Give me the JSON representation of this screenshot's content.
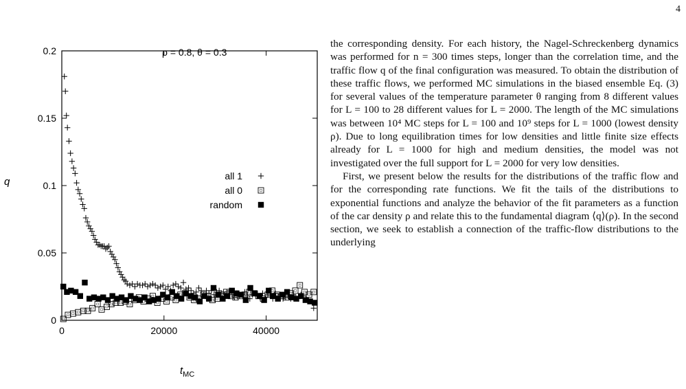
{
  "page_number": "4",
  "chart_data": {
    "type": "scatter",
    "annotation": "ρ = 0.8, θ = 0.3",
    "ylabel": "q",
    "xlabel_main": "t",
    "xlabel_sub": "MC",
    "xlim": [
      0,
      50000
    ],
    "ylim": [
      0,
      0.2
    ],
    "x_ticks": [
      0,
      20000,
      40000
    ],
    "x_tick_labels": [
      "0",
      "20000",
      "40000"
    ],
    "y_ticks": [
      0,
      0.05,
      0.1,
      0.15,
      0.2
    ],
    "y_tick_labels": [
      "0",
      "0.05",
      "0.1",
      "0.15",
      "0.2"
    ],
    "legend_position": "center-right",
    "series": [
      {
        "name": "all 1",
        "marker": "plus",
        "points": [
          [
            500,
            0.181
          ],
          [
            700,
            0.17
          ],
          [
            900,
            0.152
          ],
          [
            1100,
            0.143
          ],
          [
            1400,
            0.133
          ],
          [
            1700,
            0.124
          ],
          [
            2000,
            0.118
          ],
          [
            2300,
            0.113
          ],
          [
            2600,
            0.109
          ],
          [
            2900,
            0.102
          ],
          [
            3200,
            0.097
          ],
          [
            3500,
            0.094
          ],
          [
            3800,
            0.09
          ],
          [
            4100,
            0.086
          ],
          [
            4400,
            0.083
          ],
          [
            4700,
            0.076
          ],
          [
            5000,
            0.073
          ],
          [
            5300,
            0.07
          ],
          [
            5600,
            0.068
          ],
          [
            5900,
            0.066
          ],
          [
            6200,
            0.063
          ],
          [
            6500,
            0.06
          ],
          [
            6800,
            0.058
          ],
          [
            7100,
            0.056
          ],
          [
            7400,
            0.056
          ],
          [
            7700,
            0.055
          ],
          [
            8000,
            0.055
          ],
          [
            8300,
            0.055
          ],
          [
            8600,
            0.053
          ],
          [
            8900,
            0.054
          ],
          [
            9200,
            0.055
          ],
          [
            9500,
            0.051
          ],
          [
            9800,
            0.049
          ],
          [
            10100,
            0.047
          ],
          [
            10400,
            0.045
          ],
          [
            10700,
            0.042
          ],
          [
            11000,
            0.039
          ],
          [
            11300,
            0.036
          ],
          [
            11600,
            0.034
          ],
          [
            11900,
            0.032
          ],
          [
            12200,
            0.03
          ],
          [
            12500,
            0.029
          ],
          [
            12800,
            0.027
          ],
          [
            13300,
            0.026
          ],
          [
            13800,
            0.027
          ],
          [
            14300,
            0.025
          ],
          [
            14800,
            0.027
          ],
          [
            15300,
            0.026
          ],
          [
            15800,
            0.026
          ],
          [
            16300,
            0.027
          ],
          [
            16800,
            0.025
          ],
          [
            17300,
            0.026
          ],
          [
            17800,
            0.027
          ],
          [
            18300,
            0.026
          ],
          [
            18800,
            0.024
          ],
          [
            19300,
            0.025
          ],
          [
            19800,
            0.026
          ],
          [
            20300,
            0.023
          ],
          [
            20800,
            0.025
          ],
          [
            21300,
            0.022
          ],
          [
            21800,
            0.026
          ],
          [
            22300,
            0.027
          ],
          [
            22800,
            0.025
          ],
          [
            23300,
            0.024
          ],
          [
            23800,
            0.028
          ],
          [
            24300,
            0.023
          ],
          [
            24800,
            0.024
          ],
          [
            25300,
            0.022
          ],
          [
            25800,
            0.02
          ],
          [
            26300,
            0.021
          ],
          [
            26800,
            0.024
          ],
          [
            27300,
            0.022
          ],
          [
            27800,
            0.019
          ],
          [
            28300,
            0.022
          ],
          [
            28800,
            0.02
          ],
          [
            29300,
            0.022
          ],
          [
            29800,
            0.019
          ],
          [
            30300,
            0.021
          ],
          [
            30800,
            0.022
          ],
          [
            31300,
            0.02
          ],
          [
            31800,
            0.018
          ],
          [
            32300,
            0.021
          ],
          [
            32800,
            0.022
          ],
          [
            33300,
            0.019
          ],
          [
            33800,
            0.017
          ],
          [
            34300,
            0.02
          ],
          [
            34800,
            0.018
          ],
          [
            35300,
            0.019
          ],
          [
            35800,
            0.021
          ],
          [
            36300,
            0.018
          ],
          [
            36800,
            0.016
          ],
          [
            37300,
            0.019
          ],
          [
            37800,
            0.02
          ],
          [
            38300,
            0.018
          ],
          [
            38800,
            0.017
          ],
          [
            39300,
            0.02
          ],
          [
            39800,
            0.017
          ],
          [
            40300,
            0.019
          ],
          [
            40800,
            0.018
          ],
          [
            41300,
            0.016
          ],
          [
            41800,
            0.02
          ],
          [
            42300,
            0.018
          ],
          [
            42800,
            0.019
          ],
          [
            43300,
            0.016
          ],
          [
            43800,
            0.017
          ],
          [
            44300,
            0.018
          ],
          [
            44800,
            0.016
          ],
          [
            45300,
            0.019
          ],
          [
            45800,
            0.017
          ],
          [
            46300,
            0.016
          ],
          [
            46800,
            0.019
          ],
          [
            47300,
            0.018
          ],
          [
            47800,
            0.016
          ],
          [
            48300,
            0.015
          ],
          [
            48800,
            0.014
          ],
          [
            49300,
            0.009
          ]
        ]
      },
      {
        "name": "all 0",
        "marker": "open-square",
        "points": [
          [
            300,
            0.001
          ],
          [
            1200,
            0.004
          ],
          [
            2200,
            0.005
          ],
          [
            3200,
            0.006
          ],
          [
            4200,
            0.007
          ],
          [
            5100,
            0.007
          ],
          [
            6000,
            0.009
          ],
          [
            7000,
            0.012
          ],
          [
            7800,
            0.008
          ],
          [
            8800,
            0.01
          ],
          [
            9700,
            0.012
          ],
          [
            10600,
            0.013
          ],
          [
            11500,
            0.013
          ],
          [
            12400,
            0.014
          ],
          [
            13300,
            0.012
          ],
          [
            14200,
            0.015
          ],
          [
            15100,
            0.017
          ],
          [
            16000,
            0.014
          ],
          [
            16900,
            0.016
          ],
          [
            17800,
            0.018
          ],
          [
            18700,
            0.013
          ],
          [
            19600,
            0.016
          ],
          [
            20500,
            0.014
          ],
          [
            21400,
            0.017
          ],
          [
            22300,
            0.015
          ],
          [
            23200,
            0.019
          ],
          [
            24100,
            0.02
          ],
          [
            25000,
            0.017
          ],
          [
            25900,
            0.015
          ],
          [
            26800,
            0.016
          ],
          [
            27700,
            0.019
          ],
          [
            28600,
            0.018
          ],
          [
            29500,
            0.015
          ],
          [
            30400,
            0.016
          ],
          [
            31300,
            0.019
          ],
          [
            32200,
            0.021
          ],
          [
            33100,
            0.018
          ],
          [
            34000,
            0.017
          ],
          [
            34900,
            0.018
          ],
          [
            35800,
            0.019
          ],
          [
            36700,
            0.021
          ],
          [
            37600,
            0.02
          ],
          [
            38500,
            0.018
          ],
          [
            39400,
            0.016
          ],
          [
            40300,
            0.019
          ],
          [
            41200,
            0.022
          ],
          [
            42100,
            0.019
          ],
          [
            43000,
            0.018
          ],
          [
            43900,
            0.017
          ],
          [
            44800,
            0.02
          ],
          [
            45700,
            0.022
          ],
          [
            46600,
            0.026
          ],
          [
            47500,
            0.021
          ],
          [
            48400,
            0.019
          ],
          [
            49300,
            0.021
          ]
        ]
      },
      {
        "name": "random",
        "marker": "filled-square",
        "points": [
          [
            300,
            0.025
          ],
          [
            1000,
            0.021
          ],
          [
            1800,
            0.022
          ],
          [
            2700,
            0.021
          ],
          [
            3600,
            0.018
          ],
          [
            4500,
            0.028
          ],
          [
            5400,
            0.016
          ],
          [
            6300,
            0.017
          ],
          [
            7200,
            0.016
          ],
          [
            8100,
            0.017
          ],
          [
            9000,
            0.015
          ],
          [
            9900,
            0.018
          ],
          [
            10800,
            0.016
          ],
          [
            11700,
            0.017
          ],
          [
            12600,
            0.015
          ],
          [
            13500,
            0.018
          ],
          [
            14400,
            0.016
          ],
          [
            15300,
            0.015
          ],
          [
            16200,
            0.017
          ],
          [
            17100,
            0.014
          ],
          [
            18000,
            0.015
          ],
          [
            18900,
            0.016
          ],
          [
            19800,
            0.019
          ],
          [
            20700,
            0.017
          ],
          [
            21600,
            0.021
          ],
          [
            22500,
            0.018
          ],
          [
            23400,
            0.016
          ],
          [
            24300,
            0.02
          ],
          [
            25200,
            0.018
          ],
          [
            26100,
            0.017
          ],
          [
            27000,
            0.014
          ],
          [
            27900,
            0.018
          ],
          [
            28800,
            0.016
          ],
          [
            29700,
            0.024
          ],
          [
            30600,
            0.019
          ],
          [
            31500,
            0.016
          ],
          [
            32400,
            0.018
          ],
          [
            33300,
            0.022
          ],
          [
            34200,
            0.02
          ],
          [
            35100,
            0.019
          ],
          [
            36000,
            0.015
          ],
          [
            36900,
            0.024
          ],
          [
            37800,
            0.02
          ],
          [
            38700,
            0.018
          ],
          [
            39600,
            0.015
          ],
          [
            40500,
            0.022
          ],
          [
            41400,
            0.018
          ],
          [
            42300,
            0.016
          ],
          [
            43200,
            0.019
          ],
          [
            44100,
            0.021
          ],
          [
            45000,
            0.017
          ],
          [
            45900,
            0.016
          ],
          [
            46800,
            0.018
          ],
          [
            47700,
            0.015
          ],
          [
            48600,
            0.014
          ],
          [
            49500,
            0.013
          ]
        ]
      }
    ]
  },
  "text_paragraphs": [
    "the corresponding density. For each history, the Nagel-Schreckenberg dynamics was performed for n = 300 times steps, longer than the correlation time, and the traffic flow q of the final configuration was measured. To obtain the distribution of these traffic flows, we performed MC simulations in the biased ensemble Eq. (3) for several values of the temperature parameter θ ranging from 8 different values for L = 100 to 28 different values for L = 2000. The length of the MC simulations was between 10⁴ MC steps for L = 100 and 10⁹ steps for L = 1000 (lowest density ρ). Due to long equilibration times for low densities and little finite size effects already for L = 1000 for high and medium densities, the model was not investigated over the full support for L = 2000 for very low densities.",
    "First, we present below the results for the distributions of the traffic flow and for the corresponding rate functions. We fit the tails of the distributions to exponential functions and analyze the behavior of the fit parameters as a function of the car density ρ and relate this to the fundamental diagram ⟨q⟩(ρ). In the second section, we seek to establish a connection of the traffic-flow distributions to the underlying"
  ]
}
